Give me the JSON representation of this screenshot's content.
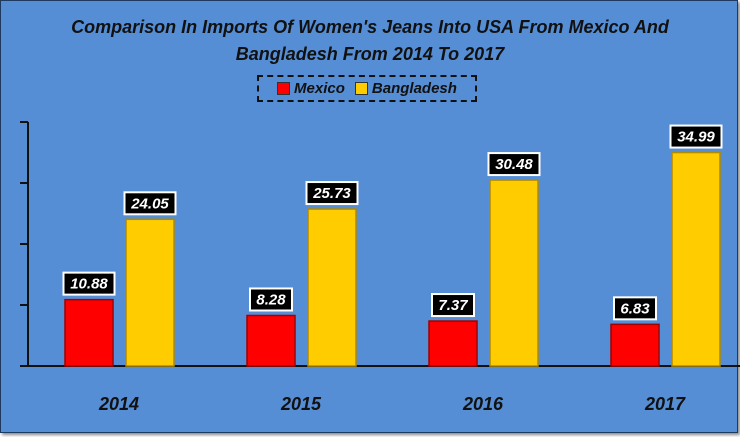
{
  "chart_data": {
    "type": "bar",
    "title_lines": [
      "Comparison In Imports Of Women's Jeans Into USA From Mexico And",
      "Bangladesh From 2014 To 2017"
    ],
    "categories": [
      "2014",
      "2015",
      "2016",
      "2017"
    ],
    "series": [
      {
        "name": "Mexico",
        "color": "#ff0000",
        "values": [
          10.88,
          8.28,
          7.37,
          6.83
        ],
        "labels": [
          "10.88",
          "8.28",
          "7.37",
          "6.83"
        ]
      },
      {
        "name": "Bangladesh",
        "color": "#ffcc00",
        "values": [
          24.05,
          25.73,
          30.48,
          34.99
        ],
        "labels": [
          "24.05",
          "25.73",
          "30.48",
          "34.99"
        ]
      }
    ],
    "yticks": [
      "0",
      "10",
      "20",
      "30",
      "40"
    ],
    "ylim": [
      0,
      40
    ],
    "legend": "top-center",
    "grid": false,
    "xlabel": "",
    "ylabel": ""
  }
}
